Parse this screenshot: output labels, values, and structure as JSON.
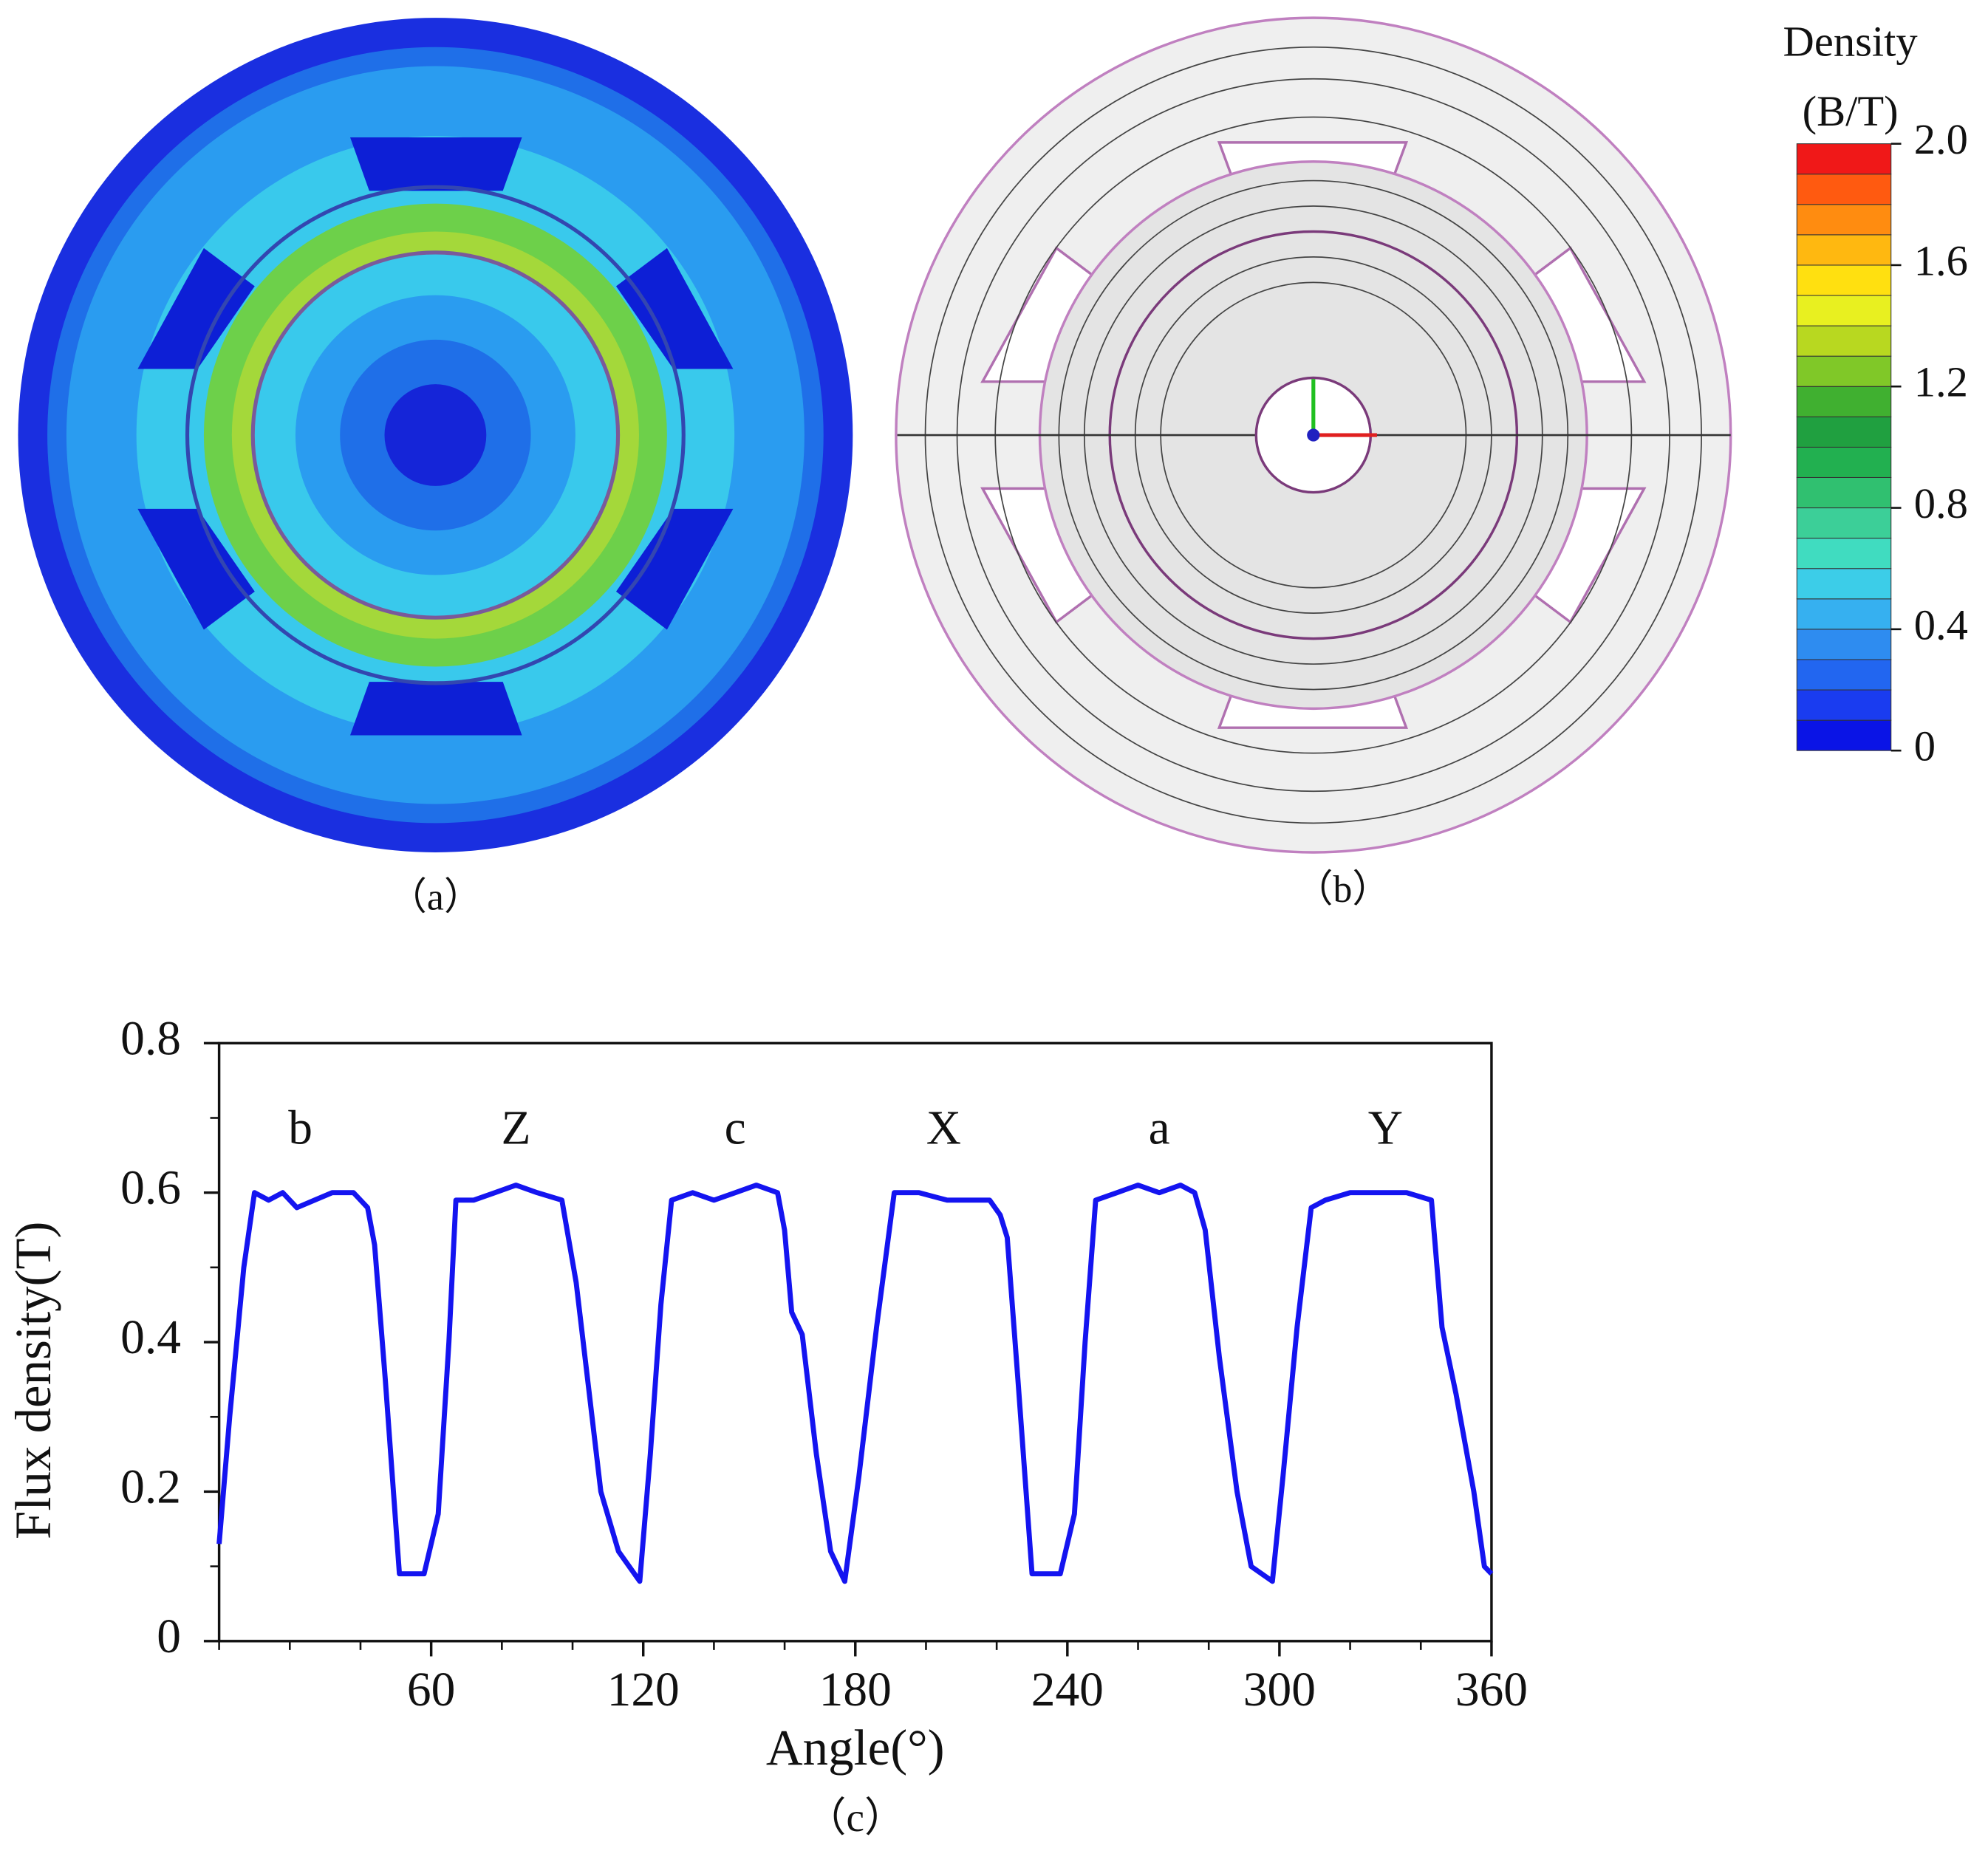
{
  "panels": {
    "a": "（a）",
    "b": "（b）",
    "c": "（c）"
  },
  "colorbar": {
    "title_lines": [
      "Density",
      "(B/T)"
    ],
    "lim": [
      0,
      2
    ],
    "ticks": [
      0,
      0.4,
      0.8,
      1.2,
      1.6,
      {
        "value": 2,
        "label": "2.0"
      }
    ]
  },
  "chart_data": {
    "type": "line",
    "x_label": "Angle(°)",
    "y_label": "Flux density(T)",
    "xlim": [
      0,
      360
    ],
    "ylim": [
      0,
      0.8
    ],
    "xticks": [
      60,
      120,
      180,
      240,
      300,
      360
    ],
    "xminorticks": [
      0,
      20,
      40,
      80,
      100,
      140,
      160,
      200,
      220,
      260,
      280,
      320,
      340
    ],
    "yticks": [
      0,
      0.2,
      0.4,
      0.6,
      0.8
    ],
    "yminorticks": [
      0.1,
      0.3,
      0.5,
      0.7
    ],
    "annotations": [
      {
        "text": "b",
        "x": 23,
        "y": 0.68
      },
      {
        "text": "Z",
        "x": 84,
        "y": 0.68
      },
      {
        "text": "c",
        "x": 146,
        "y": 0.68
      },
      {
        "text": "X",
        "x": 205,
        "y": 0.68
      },
      {
        "text": "a",
        "x": 266,
        "y": 0.68
      },
      {
        "text": "Y",
        "x": 330,
        "y": 0.68
      }
    ],
    "series": [
      {
        "name": "Flux density",
        "color": "#1414f0",
        "x": [
          0,
          3,
          7,
          10,
          14,
          18,
          22,
          27,
          32,
          38,
          42,
          44,
          47,
          51,
          55,
          58,
          62,
          65,
          67,
          72,
          78,
          84,
          90,
          97,
          101,
          105,
          108,
          113,
          119,
          122,
          125,
          128,
          134,
          140,
          146,
          152,
          158,
          160,
          162,
          165,
          169,
          173,
          177,
          181,
          186,
          191,
          198,
          206,
          214,
          218,
          221,
          223,
          226,
          230,
          235,
          238,
          242,
          245,
          248,
          254,
          260,
          266,
          272,
          276,
          279,
          283,
          288,
          292,
          298,
          301,
          305,
          309,
          313,
          320,
          328,
          336,
          343,
          346,
          350,
          355,
          358,
          360
        ],
        "values": [
          0.13,
          0.3,
          0.5,
          0.6,
          0.59,
          0.6,
          0.58,
          0.59,
          0.6,
          0.6,
          0.58,
          0.53,
          0.35,
          0.09,
          0.09,
          0.09,
          0.17,
          0.4,
          0.59,
          0.59,
          0.6,
          0.61,
          0.6,
          0.59,
          0.48,
          0.32,
          0.2,
          0.12,
          0.08,
          0.25,
          0.45,
          0.59,
          0.6,
          0.59,
          0.6,
          0.61,
          0.6,
          0.55,
          0.44,
          0.41,
          0.25,
          0.12,
          0.08,
          0.22,
          0.42,
          0.6,
          0.6,
          0.59,
          0.59,
          0.59,
          0.57,
          0.54,
          0.35,
          0.09,
          0.09,
          0.09,
          0.17,
          0.4,
          0.59,
          0.6,
          0.61,
          0.6,
          0.61,
          0.6,
          0.55,
          0.38,
          0.2,
          0.1,
          0.08,
          0.22,
          0.42,
          0.58,
          0.59,
          0.6,
          0.6,
          0.6,
          0.59,
          0.42,
          0.33,
          0.2,
          0.1,
          0.09
        ]
      }
    ]
  }
}
